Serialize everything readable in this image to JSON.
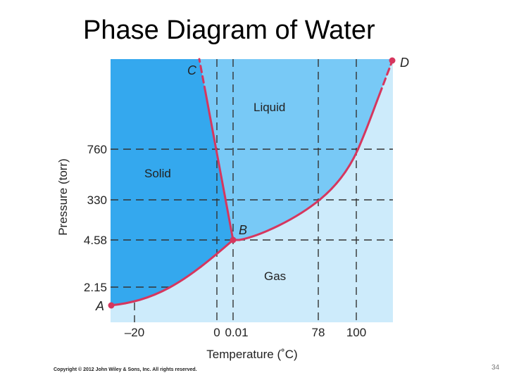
{
  "slide": {
    "title": "Phase Diagram of Water",
    "copyright": "Copyright © 2012 John Wiley & Sons, Inc. All rights reserved.",
    "page_number": "34"
  },
  "colors": {
    "solid_region": "#34a8ee",
    "liquid_region": "#78c9f6",
    "gas_region": "#cdebfb",
    "boundary_curve": "#d6365e",
    "dashed_lines": "#333333"
  },
  "chart_data": {
    "type": "phase-diagram",
    "xlabel": "Temperature (˚C)",
    "ylabel": "Pressure (torr)",
    "x_ticks": [
      "–20",
      "0",
      "0.01",
      "78",
      "100"
    ],
    "y_ticks": [
      "760",
      "330",
      "4.58",
      "2.15"
    ],
    "regions": [
      "Solid",
      "Liquid",
      "Gas"
    ],
    "points": [
      {
        "label": "A"
      },
      {
        "label": "B",
        "temperature": 0.01,
        "pressure": 4.58
      },
      {
        "label": "C"
      },
      {
        "label": "D"
      }
    ],
    "reference_lines": {
      "temperature": [
        "–20",
        "0",
        "0.01",
        "78",
        "100"
      ],
      "pressure": [
        "760",
        "330",
        "4.58",
        "2.15"
      ]
    }
  }
}
